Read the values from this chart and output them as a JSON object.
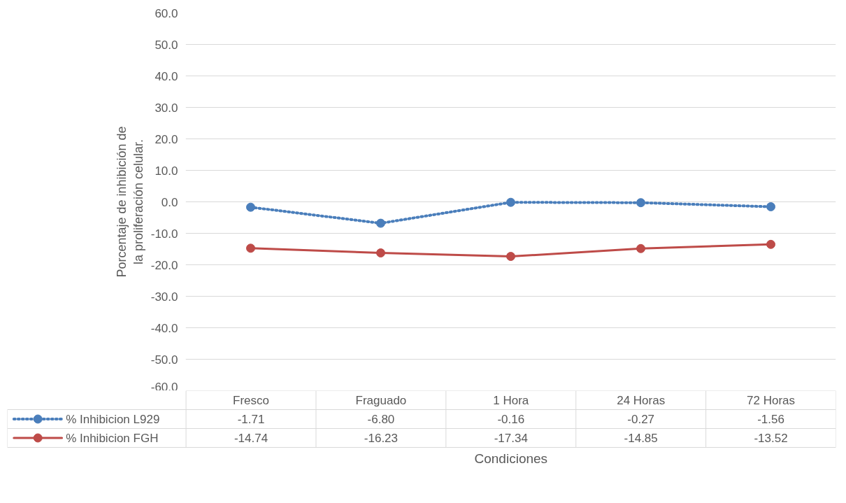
{
  "chart_data": {
    "type": "line",
    "xlabel": "Condiciones",
    "ylabel": "Porcentaje de inhibición de\nla proliferación celular.",
    "categories": [
      "Fresco",
      "Fraguado",
      "1 Hora",
      "24 Horas",
      "72 Horas"
    ],
    "series": [
      {
        "name": "% Inhibicion L929",
        "color": "#4a7ebb",
        "values": [
          -1.71,
          -6.8,
          -0.16,
          -0.27,
          -1.56
        ],
        "value_labels": [
          "-1.71",
          "-6.80",
          "-0.16",
          "-0.27",
          "-1.56"
        ],
        "line_style": "dotted",
        "marker": "circle"
      },
      {
        "name": "% Inhibicion FGH",
        "color": "#be4b48",
        "values": [
          -14.74,
          -16.23,
          -17.34,
          -14.85,
          -13.52
        ],
        "value_labels": [
          "-14.74",
          "-16.23",
          "-17.34",
          "-14.85",
          "-13.52"
        ],
        "line_style": "solid",
        "marker": "circle"
      }
    ],
    "ylim": [
      -60,
      60
    ],
    "yticks": [
      {
        "value": -60,
        "label": "-60.0"
      },
      {
        "value": -50,
        "label": "-50.0"
      },
      {
        "value": -40,
        "label": "-40.0"
      },
      {
        "value": -30,
        "label": "-30.0"
      },
      {
        "value": -20,
        "label": "-20.0"
      },
      {
        "value": -10,
        "label": "-10.0"
      },
      {
        "value": 0,
        "label": "0.0"
      },
      {
        "value": 10,
        "label": "10.0"
      },
      {
        "value": 20,
        "label": "20.0"
      },
      {
        "value": 30,
        "label": "30.0"
      },
      {
        "value": 40,
        "label": "40.0"
      },
      {
        "value": 50,
        "label": "50.0"
      },
      {
        "value": 60,
        "label": "60.0"
      }
    ],
    "grid": "y",
    "legend": "bottom"
  }
}
